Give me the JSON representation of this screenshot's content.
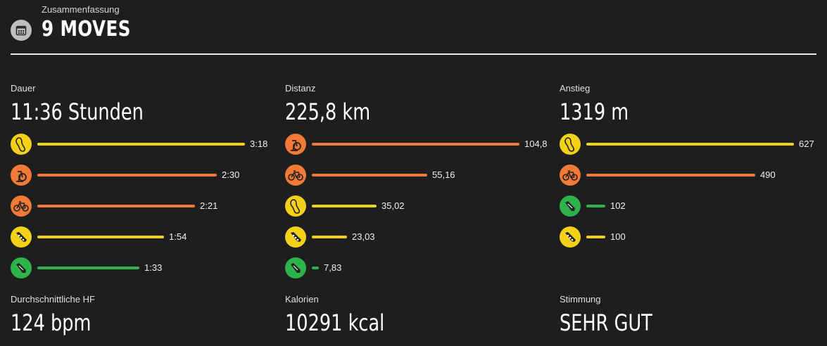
{
  "header": {
    "subtitle": "Zusammenfassung",
    "title": "9 MOVES",
    "icon": "calendar-icon"
  },
  "colors": {
    "yellow": "#f2d118",
    "orange": "#f27a36",
    "green": "#2db34a",
    "background": "#1e1e1e"
  },
  "columns": [
    {
      "label": "Dauer",
      "value": "11:36 Stunden",
      "rows": [
        {
          "activity": "walking-shoe-icon",
          "color": "yellow",
          "fraction": 1.0,
          "label": "3:18"
        },
        {
          "activity": "indoor-cycling-icon",
          "color": "orange",
          "fraction": 0.863,
          "label": "2:30"
        },
        {
          "activity": "bicycle-icon",
          "color": "orange",
          "fraction": 0.76,
          "label": "2:21"
        },
        {
          "activity": "trail-running-shoe-icon",
          "color": "yellow",
          "fraction": 0.61,
          "label": "1:54"
        },
        {
          "activity": "running-shoe-icon",
          "color": "green",
          "fraction": 0.49,
          "label": "1:33"
        }
      ]
    },
    {
      "label": "Distanz",
      "value": "225,8 km",
      "rows": [
        {
          "activity": "indoor-cycling-icon",
          "color": "orange",
          "fraction": 1.0,
          "label": "104,8"
        },
        {
          "activity": "bicycle-icon",
          "color": "orange",
          "fraction": 0.557,
          "label": "55,16"
        },
        {
          "activity": "walking-shoe-icon",
          "color": "yellow",
          "fraction": 0.313,
          "label": "35,02"
        },
        {
          "activity": "trail-running-shoe-icon",
          "color": "yellow",
          "fraction": 0.171,
          "label": "23,03"
        },
        {
          "activity": "running-shoe-icon",
          "color": "green",
          "fraction": 0.034,
          "label": "7,83"
        }
      ]
    },
    {
      "label": "Anstieg",
      "value": "1319 m",
      "rows": [
        {
          "activity": "walking-shoe-icon",
          "color": "yellow",
          "fraction": 1.0,
          "label": "627"
        },
        {
          "activity": "bicycle-icon",
          "color": "orange",
          "fraction": 0.815,
          "label": "490"
        },
        {
          "activity": "running-shoe-icon",
          "color": "green",
          "fraction": 0.093,
          "label": "102"
        },
        {
          "activity": "trail-running-shoe-icon",
          "color": "yellow",
          "fraction": 0.09,
          "label": "100"
        }
      ]
    }
  ],
  "stats": [
    {
      "label": "Durchschnittliche HF",
      "value": "124 bpm"
    },
    {
      "label": "Kalorien",
      "value": "10291 kcal"
    },
    {
      "label": "Stimmung",
      "value": "SEHR GUT"
    }
  ]
}
